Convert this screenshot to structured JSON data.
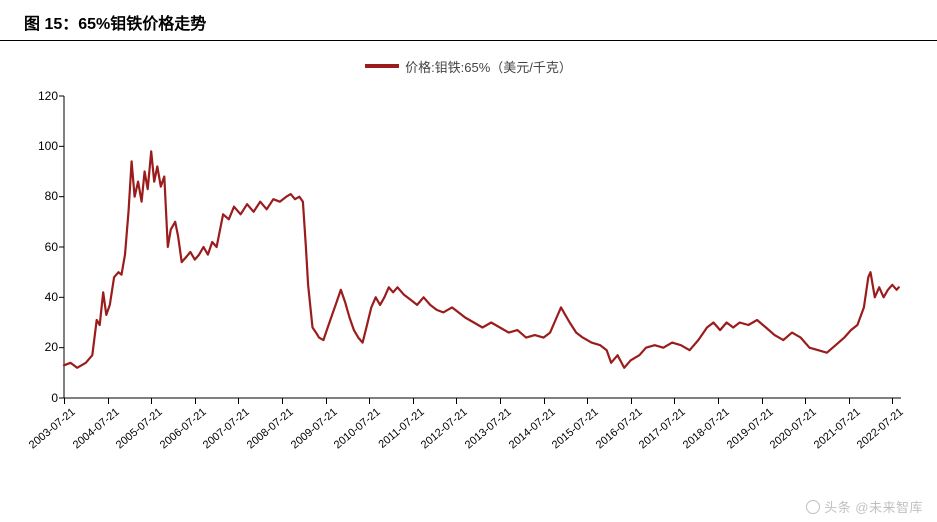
{
  "title": {
    "text": "图 15：65%钼铁价格走势",
    "fontsize": 16
  },
  "legend": {
    "label": "价格:钼铁:65%（美元/千克）",
    "swatch_color": "#9b1c1c",
    "label_color": "#555555",
    "fontsize": 13
  },
  "chart": {
    "type": "line",
    "line_color": "#9b1c1c",
    "line_width": 2.2,
    "background_color": "#ffffff",
    "axis_color": "#000000",
    "ylim": [
      0,
      120
    ],
    "ytick_step": 20,
    "yticks": [
      0,
      20,
      40,
      60,
      80,
      100,
      120
    ],
    "xlim": [
      0,
      19.2
    ],
    "x_labels": [
      "2003-07-21",
      "2004-07-21",
      "2005-07-21",
      "2006-07-21",
      "2007-07-21",
      "2008-07-21",
      "2009-07-21",
      "2010-07-21",
      "2011-07-21",
      "2012-07-21",
      "2013-07-21",
      "2014-07-21",
      "2015-07-21",
      "2016-07-21",
      "2017-07-21",
      "2018-07-21",
      "2019-07-21",
      "2020-07-21",
      "2021-07-21",
      "2022-07-21"
    ],
    "x_label_fontsize": 11,
    "x_label_rotation": -40,
    "y_label_fontsize": 12,
    "series": [
      {
        "name": "价格:钼铁:65%",
        "points": [
          [
            0.0,
            13
          ],
          [
            0.15,
            14
          ],
          [
            0.3,
            12
          ],
          [
            0.5,
            14
          ],
          [
            0.65,
            17
          ],
          [
            0.75,
            31
          ],
          [
            0.82,
            29
          ],
          [
            0.9,
            42
          ],
          [
            0.97,
            33
          ],
          [
            1.05,
            37
          ],
          [
            1.15,
            48
          ],
          [
            1.25,
            50
          ],
          [
            1.32,
            49
          ],
          [
            1.4,
            57
          ],
          [
            1.48,
            74
          ],
          [
            1.55,
            94
          ],
          [
            1.62,
            80
          ],
          [
            1.7,
            86
          ],
          [
            1.78,
            78
          ],
          [
            1.85,
            90
          ],
          [
            1.92,
            83
          ],
          [
            2.0,
            98
          ],
          [
            2.07,
            86
          ],
          [
            2.14,
            92
          ],
          [
            2.22,
            84
          ],
          [
            2.3,
            88
          ],
          [
            2.38,
            60
          ],
          [
            2.45,
            67
          ],
          [
            2.55,
            70
          ],
          [
            2.62,
            64
          ],
          [
            2.7,
            54
          ],
          [
            2.8,
            56
          ],
          [
            2.9,
            58
          ],
          [
            3.0,
            55
          ],
          [
            3.1,
            57
          ],
          [
            3.2,
            60
          ],
          [
            3.3,
            57
          ],
          [
            3.4,
            62
          ],
          [
            3.5,
            60
          ],
          [
            3.65,
            73
          ],
          [
            3.78,
            71
          ],
          [
            3.9,
            76
          ],
          [
            4.05,
            73
          ],
          [
            4.2,
            77
          ],
          [
            4.35,
            74
          ],
          [
            4.5,
            78
          ],
          [
            4.65,
            75
          ],
          [
            4.8,
            79
          ],
          [
            4.95,
            78
          ],
          [
            5.1,
            80
          ],
          [
            5.2,
            81
          ],
          [
            5.3,
            79
          ],
          [
            5.4,
            80
          ],
          [
            5.48,
            78
          ],
          [
            5.55,
            60
          ],
          [
            5.6,
            45
          ],
          [
            5.7,
            28
          ],
          [
            5.78,
            26
          ],
          [
            5.85,
            24
          ],
          [
            5.95,
            23
          ],
          [
            6.05,
            28
          ],
          [
            6.15,
            33
          ],
          [
            6.25,
            38
          ],
          [
            6.35,
            43
          ],
          [
            6.45,
            38
          ],
          [
            6.55,
            32
          ],
          [
            6.65,
            27
          ],
          [
            6.75,
            24
          ],
          [
            6.85,
            22
          ],
          [
            6.95,
            29
          ],
          [
            7.05,
            36
          ],
          [
            7.15,
            40
          ],
          [
            7.25,
            37
          ],
          [
            7.35,
            40
          ],
          [
            7.45,
            44
          ],
          [
            7.55,
            42
          ],
          [
            7.65,
            44
          ],
          [
            7.8,
            41
          ],
          [
            7.95,
            39
          ],
          [
            8.1,
            37
          ],
          [
            8.25,
            40
          ],
          [
            8.4,
            37
          ],
          [
            8.55,
            35
          ],
          [
            8.7,
            34
          ],
          [
            8.9,
            36
          ],
          [
            9.05,
            34
          ],
          [
            9.2,
            32
          ],
          [
            9.4,
            30
          ],
          [
            9.6,
            28
          ],
          [
            9.8,
            30
          ],
          [
            10.0,
            28
          ],
          [
            10.2,
            26
          ],
          [
            10.4,
            27
          ],
          [
            10.6,
            24
          ],
          [
            10.8,
            25
          ],
          [
            11.0,
            24
          ],
          [
            11.15,
            26
          ],
          [
            11.3,
            32
          ],
          [
            11.4,
            36
          ],
          [
            11.5,
            33
          ],
          [
            11.6,
            30
          ],
          [
            11.75,
            26
          ],
          [
            11.9,
            24
          ],
          [
            12.1,
            22
          ],
          [
            12.3,
            21
          ],
          [
            12.45,
            19
          ],
          [
            12.55,
            14
          ],
          [
            12.7,
            17
          ],
          [
            12.85,
            12
          ],
          [
            13.0,
            15
          ],
          [
            13.2,
            17
          ],
          [
            13.35,
            20
          ],
          [
            13.55,
            21
          ],
          [
            13.75,
            20
          ],
          [
            13.95,
            22
          ],
          [
            14.15,
            21
          ],
          [
            14.35,
            19
          ],
          [
            14.55,
            23
          ],
          [
            14.75,
            28
          ],
          [
            14.9,
            30
          ],
          [
            15.05,
            27
          ],
          [
            15.2,
            30
          ],
          [
            15.35,
            28
          ],
          [
            15.5,
            30
          ],
          [
            15.7,
            29
          ],
          [
            15.9,
            31
          ],
          [
            16.1,
            28
          ],
          [
            16.3,
            25
          ],
          [
            16.5,
            23
          ],
          [
            16.7,
            26
          ],
          [
            16.9,
            24
          ],
          [
            17.1,
            20
          ],
          [
            17.3,
            19
          ],
          [
            17.5,
            18
          ],
          [
            17.7,
            21
          ],
          [
            17.9,
            24
          ],
          [
            18.05,
            27
          ],
          [
            18.2,
            29
          ],
          [
            18.35,
            36
          ],
          [
            18.45,
            48
          ],
          [
            18.5,
            50
          ],
          [
            18.6,
            40
          ],
          [
            18.7,
            44
          ],
          [
            18.8,
            40
          ],
          [
            18.9,
            43
          ],
          [
            19.0,
            45
          ],
          [
            19.1,
            43
          ],
          [
            19.15,
            44
          ]
        ]
      }
    ]
  },
  "watermark": {
    "text": "头条 @未来智库",
    "color": "rgba(0,0,0,0.25)",
    "fontsize": 13
  }
}
